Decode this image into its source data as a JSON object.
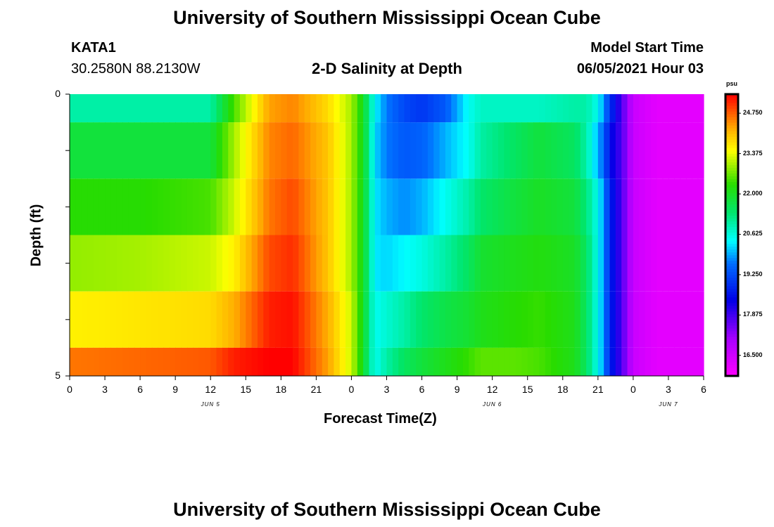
{
  "header": {
    "title": "University of Southern Mississippi Ocean Cube",
    "station": "KATA1",
    "coords": "30.2580N  88.2130W",
    "plot_title": "2-D Salinity at Depth",
    "model_start_label": "Model Start Time",
    "model_start_value": "06/05/2021 Hour 03"
  },
  "footer": {
    "title": "University of Southern Mississippi Ocean Cube"
  },
  "chart_data": {
    "type": "heatmap",
    "title": "2-D Salinity at Depth",
    "xlabel": "Forecast Time(Z)",
    "ylabel": "Depth (ft)",
    "x_unit": "hours from 06/05/2021 00Z",
    "xlim": [
      0,
      54
    ],
    "ylim": [
      0,
      5
    ],
    "x_tick_labels": [
      "0",
      "3",
      "6",
      "9",
      "12",
      "15",
      "18",
      "21",
      "0",
      "3",
      "6",
      "9",
      "12",
      "15",
      "18",
      "21",
      "0",
      "3",
      "6"
    ],
    "date_labels": [
      {
        "at": 12,
        "text": "JUN 5"
      },
      {
        "at": 36,
        "text": "JUN 6"
      },
      {
        "at": 51,
        "text": "JUN 7"
      }
    ],
    "y_tick_labels": [
      "0",
      "5"
    ],
    "colorbar": {
      "unit": "psu",
      "min": 15.8,
      "max": 25.4,
      "tick_values": [
        16.5,
        17.875,
        19.25,
        20.625,
        22.0,
        23.375,
        24.75
      ],
      "tick_labels": [
        "16.500",
        "17.875",
        "19.250",
        "20.625",
        "22.000",
        "23.375",
        "24.750"
      ]
    },
    "layers": [
      {
        "depth_top": 0,
        "depth_bottom": 0.5,
        "hours": [
          0,
          6,
          12,
          14,
          17,
          19,
          22,
          24,
          25,
          25.5,
          26,
          27,
          28.5,
          30,
          32,
          34,
          35,
          38,
          40,
          43,
          44,
          45,
          45.5,
          46,
          47,
          48,
          50,
          54
        ],
        "values": [
          21.0,
          21.0,
          21.0,
          22.5,
          24.3,
          24.5,
          23.8,
          23.0,
          22.0,
          21.2,
          20.4,
          19.7,
          19.2,
          19.0,
          19.4,
          20.5,
          20.8,
          20.8,
          20.8,
          21.0,
          21.0,
          20.5,
          19.8,
          19.0,
          17.8,
          16.6,
          16.2,
          16.2
        ]
      },
      {
        "depth_top": 0.5,
        "depth_bottom": 1.5,
        "hours": [
          0,
          6,
          12,
          14,
          17,
          19,
          22,
          24,
          25,
          25.5,
          26,
          27,
          28.5,
          30,
          32,
          34,
          35,
          38,
          40,
          43,
          44,
          45,
          45.5,
          46,
          47,
          48,
          50,
          54
        ],
        "values": [
          21.8,
          21.8,
          21.8,
          23.0,
          24.5,
          24.7,
          24.0,
          23.0,
          22.0,
          21.2,
          20.2,
          19.7,
          19.4,
          19.5,
          20.0,
          20.5,
          21.0,
          21.5,
          21.8,
          21.5,
          21.0,
          20.0,
          19.5,
          18.5,
          17.8,
          16.6,
          16.2,
          16.2
        ]
      },
      {
        "depth_top": 1.5,
        "depth_bottom": 2.5,
        "hours": [
          0,
          6,
          12,
          14,
          17,
          19,
          22,
          24,
          25,
          25.5,
          26,
          27,
          28.5,
          30,
          32,
          34,
          35,
          38,
          40,
          43,
          44,
          45,
          45.5,
          46,
          47,
          48,
          50,
          54
        ],
        "values": [
          22.3,
          22.3,
          22.5,
          23.2,
          24.6,
          24.9,
          24.0,
          23.0,
          22.0,
          21.2,
          20.3,
          20.0,
          19.8,
          20.0,
          20.5,
          21.0,
          21.4,
          21.8,
          22.0,
          21.8,
          21.3,
          20.5,
          19.8,
          18.8,
          17.8,
          16.6,
          16.2,
          16.2
        ]
      },
      {
        "depth_top": 2.5,
        "depth_bottom": 3.5,
        "hours": [
          0,
          6,
          12,
          14,
          17,
          19,
          22,
          24,
          25,
          25.5,
          26,
          27,
          28.5,
          30,
          32,
          34,
          35,
          38,
          40,
          43,
          44,
          45,
          45.5,
          46,
          47,
          48,
          50,
          54
        ],
        "values": [
          22.9,
          23.0,
          23.2,
          23.6,
          24.9,
          25.1,
          24.0,
          23.0,
          22.0,
          21.2,
          20.3,
          20.2,
          20.4,
          20.6,
          21.0,
          21.5,
          21.9,
          22.1,
          22.2,
          22.0,
          21.5,
          20.5,
          19.8,
          18.8,
          17.8,
          16.6,
          16.2,
          16.2
        ]
      },
      {
        "depth_top": 3.5,
        "depth_bottom": 4.5,
        "hours": [
          0,
          6,
          12,
          14,
          17,
          19,
          22,
          24,
          25,
          25.5,
          26,
          27,
          28.5,
          30,
          32,
          34,
          35,
          38,
          40,
          43,
          44,
          45,
          45.5,
          46,
          47,
          48,
          50,
          54
        ],
        "values": [
          23.6,
          23.7,
          23.8,
          24.2,
          25.2,
          25.3,
          24.2,
          23.2,
          22.0,
          21.2,
          20.5,
          20.7,
          21.0,
          21.4,
          21.7,
          21.9,
          22.1,
          22.3,
          22.4,
          22.1,
          21.5,
          20.5,
          19.8,
          18.8,
          17.8,
          16.6,
          16.2,
          16.2
        ]
      },
      {
        "depth_top": 4.5,
        "depth_bottom": 5.0,
        "hours": [
          0,
          6,
          12,
          14,
          17,
          19,
          22,
          24,
          25,
          25.5,
          26,
          27,
          28.5,
          30,
          32,
          34,
          35,
          38,
          40,
          43,
          44,
          45,
          45.5,
          46,
          47,
          48,
          50,
          54
        ],
        "values": [
          24.6,
          24.7,
          24.8,
          25.2,
          25.4,
          25.4,
          24.3,
          23.2,
          22.0,
          21.2,
          20.5,
          21.0,
          21.5,
          21.8,
          22.1,
          22.4,
          22.6,
          22.6,
          22.5,
          22.1,
          21.5,
          20.5,
          19.8,
          18.8,
          17.8,
          16.6,
          16.2,
          16.2
        ]
      }
    ]
  }
}
